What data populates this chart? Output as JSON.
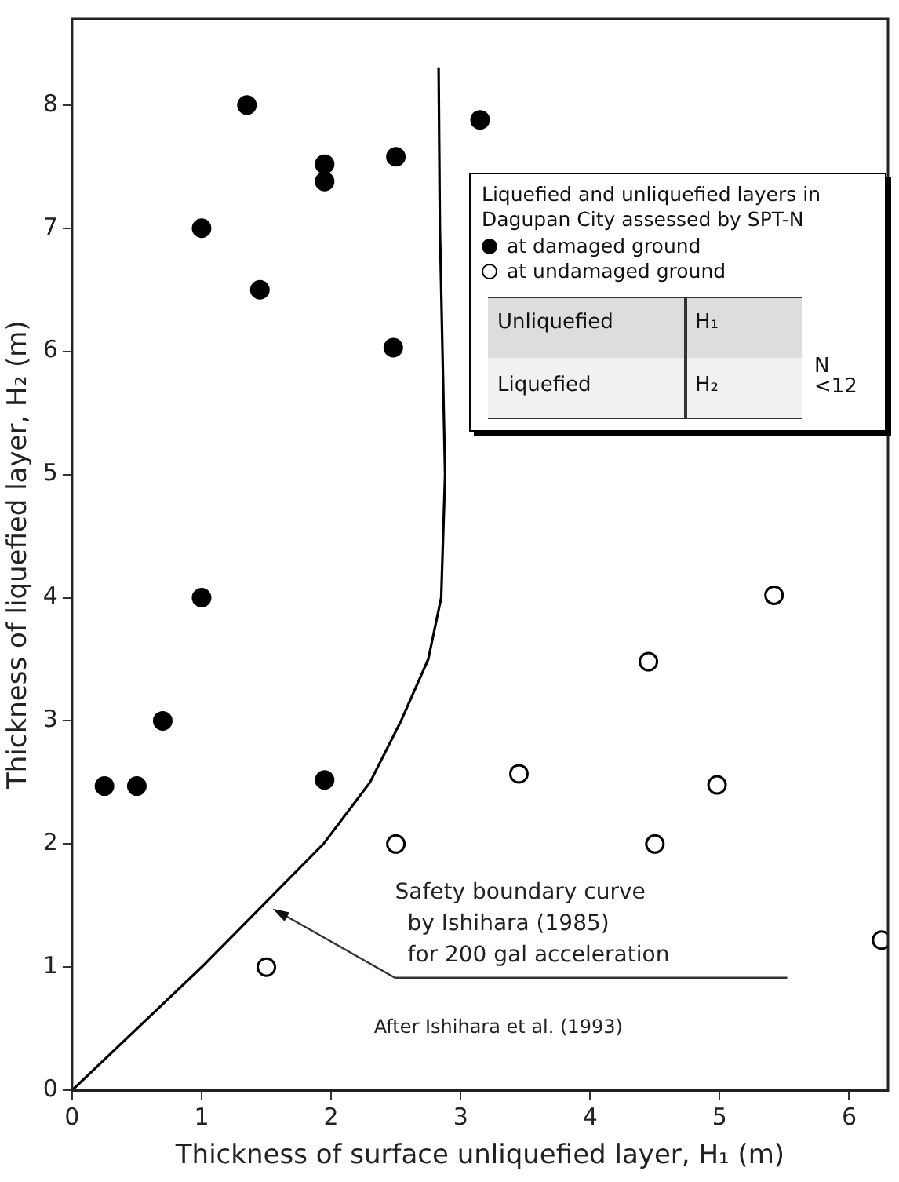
{
  "chart_data": {
    "type": "scatter",
    "xlabel": "Thickness of surface unliquefied layer, H₁ (m)",
    "ylabel": "Thickness of liquefied layer, H₂ (m)",
    "legend_title": "Liquefied and unliquefied layers in Dagupan City assessed by SPT-N",
    "legend": "top right",
    "grid": false,
    "marker": "circle",
    "xlim": [
      0,
      6.3
    ],
    "xticks": [
      0,
      1,
      2,
      3,
      4,
      5,
      6
    ],
    "ylim": [
      0,
      8.7
    ],
    "yticks": [
      0,
      1,
      2,
      3,
      4,
      5,
      6,
      7,
      8
    ],
    "series": [
      {
        "name": "at damaged ground",
        "color": "#000000",
        "x": [
          0.25,
          0.5,
          0.7,
          1.0,
          1.95,
          1.0,
          1.35,
          1.45,
          1.95,
          1.95,
          2.5,
          2.48,
          3.15
        ],
        "values": [
          2.47,
          2.47,
          3.0,
          4.0,
          2.52,
          7.0,
          8.0,
          6.5,
          7.52,
          7.38,
          7.58,
          6.03,
          7.88
        ]
      },
      {
        "name": "at undamaged ground",
        "color": "#000000",
        "x": [
          1.5,
          2.5,
          3.45,
          4.45,
          4.5,
          4.98,
          5.42,
          6.25
        ],
        "values": [
          1.0,
          2.0,
          2.57,
          3.48,
          2.0,
          2.48,
          4.02,
          1.22
        ]
      },
      {
        "type": "line",
        "color": "#000000",
        "marker": "none",
        "line_style": "solid",
        "x": [
          0,
          1,
          1.94,
          2.3,
          2.54,
          2.75,
          2.85,
          2.88,
          2.86,
          2.84,
          2.83
        ],
        "values": [
          0,
          1.0,
          2.0,
          2.5,
          3.0,
          3.5,
          4.0,
          5.0,
          6.0,
          7.0,
          8.3
        ]
      }
    ],
    "annotations": [
      {
        "text": "Safety boundary curve\nby Ishihara (1985)\nfor 200 gal acceleration",
        "x": 1.5,
        "y": 1.5
      },
      "After Ishihara et al. (1993)",
      "Unliquefied",
      "H₁",
      "Liquefied",
      "H₂",
      "N\n<12"
    ]
  }
}
